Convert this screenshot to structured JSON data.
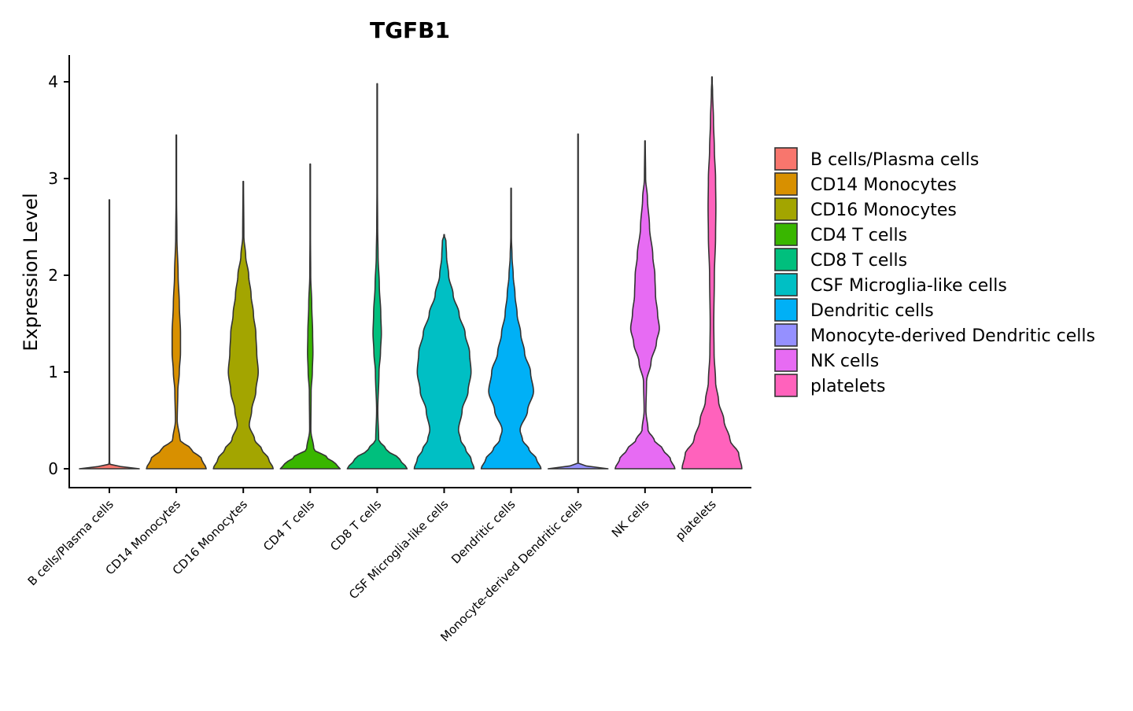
{
  "chart_data": {
    "type": "violin",
    "title": "TGFB1",
    "xlabel": "",
    "ylabel": "Expression Level",
    "ylim": [
      -0.2,
      4.27
    ],
    "yticks": [
      0,
      1,
      2,
      3,
      4
    ],
    "grid": false,
    "legend_position": "right",
    "categories": [
      "B cells/Plasma cells",
      "CD14 Monocytes",
      "CD16 Monocytes",
      "CD4 T cells",
      "CD8 T cells",
      "CSF Microglia-like cells",
      "Dendritic cells",
      "Monocyte-derived Dendritic cells",
      "NK cells",
      "platelets"
    ],
    "series": [
      {
        "name": "B cells/Plasma cells",
        "color": "#F8766D",
        "max": 2.78,
        "profile": [
          [
            0,
            1.0
          ],
          [
            0.01,
            0.5
          ],
          [
            0.05,
            0.008
          ],
          [
            2.78,
            0.008
          ]
        ]
      },
      {
        "name": "CD14 Monocytes",
        "color": "#D89000",
        "max": 3.45,
        "profile": [
          [
            0,
            1.0
          ],
          [
            0.1,
            0.85
          ],
          [
            0.2,
            0.5
          ],
          [
            0.3,
            0.12
          ],
          [
            0.5,
            0.03
          ],
          [
            0.8,
            0.05
          ],
          [
            1.0,
            0.1
          ],
          [
            1.2,
            0.14
          ],
          [
            1.4,
            0.14
          ],
          [
            1.7,
            0.1
          ],
          [
            2.0,
            0.06
          ],
          [
            2.4,
            0.02
          ],
          [
            2.8,
            0.008
          ],
          [
            3.45,
            0.008
          ]
        ]
      },
      {
        "name": "CD16 Monocytes",
        "color": "#A3A500",
        "max": 2.97,
        "profile": [
          [
            0,
            1.0
          ],
          [
            0.1,
            0.85
          ],
          [
            0.2,
            0.62
          ],
          [
            0.3,
            0.38
          ],
          [
            0.45,
            0.2
          ],
          [
            0.6,
            0.28
          ],
          [
            0.8,
            0.42
          ],
          [
            1.0,
            0.5
          ],
          [
            1.2,
            0.45
          ],
          [
            1.4,
            0.42
          ],
          [
            1.6,
            0.34
          ],
          [
            1.8,
            0.26
          ],
          [
            2.0,
            0.18
          ],
          [
            2.2,
            0.08
          ],
          [
            2.4,
            0.02
          ],
          [
            2.97,
            0.008
          ]
        ]
      },
      {
        "name": "CD4 T cells",
        "color": "#39B600",
        "max": 3.15,
        "profile": [
          [
            0,
            1.0
          ],
          [
            0.05,
            0.85
          ],
          [
            0.12,
            0.55
          ],
          [
            0.2,
            0.12
          ],
          [
            0.4,
            0.02
          ],
          [
            0.8,
            0.03
          ],
          [
            1.0,
            0.07
          ],
          [
            1.2,
            0.09
          ],
          [
            1.4,
            0.08
          ],
          [
            1.7,
            0.05
          ],
          [
            2.0,
            0.015
          ],
          [
            2.4,
            0.008
          ],
          [
            3.15,
            0.008
          ]
        ]
      },
      {
        "name": "CD8 T cells",
        "color": "#00BF7D",
        "max": 3.98,
        "profile": [
          [
            0,
            1.0
          ],
          [
            0.1,
            0.75
          ],
          [
            0.2,
            0.3
          ],
          [
            0.3,
            0.05
          ],
          [
            0.6,
            0.02
          ],
          [
            1.0,
            0.06
          ],
          [
            1.2,
            0.11
          ],
          [
            1.4,
            0.14
          ],
          [
            1.6,
            0.12
          ],
          [
            1.9,
            0.07
          ],
          [
            2.2,
            0.03
          ],
          [
            2.5,
            0.015
          ],
          [
            2.9,
            0.008
          ],
          [
            3.98,
            0.008
          ]
        ]
      },
      {
        "name": "CSF Microglia-like cells",
        "color": "#00BFC4",
        "max": 2.42,
        "profile": [
          [
            0,
            1.0
          ],
          [
            0.1,
            0.9
          ],
          [
            0.2,
            0.72
          ],
          [
            0.3,
            0.55
          ],
          [
            0.4,
            0.48
          ],
          [
            0.6,
            0.6
          ],
          [
            0.8,
            0.8
          ],
          [
            1.0,
            0.9
          ],
          [
            1.2,
            0.85
          ],
          [
            1.4,
            0.7
          ],
          [
            1.6,
            0.5
          ],
          [
            1.8,
            0.3
          ],
          [
            2.0,
            0.15
          ],
          [
            2.2,
            0.08
          ],
          [
            2.35,
            0.06
          ],
          [
            2.42,
            0.0
          ]
        ]
      },
      {
        "name": "Dendritic cells",
        "color": "#00B0F6",
        "max": 2.9,
        "profile": [
          [
            0,
            1.0
          ],
          [
            0.1,
            0.85
          ],
          [
            0.2,
            0.6
          ],
          [
            0.3,
            0.38
          ],
          [
            0.4,
            0.3
          ],
          [
            0.6,
            0.55
          ],
          [
            0.8,
            0.75
          ],
          [
            1.0,
            0.65
          ],
          [
            1.2,
            0.45
          ],
          [
            1.4,
            0.32
          ],
          [
            1.6,
            0.2
          ],
          [
            1.8,
            0.13
          ],
          [
            2.0,
            0.07
          ],
          [
            2.2,
            0.03
          ],
          [
            2.4,
            0.01
          ],
          [
            2.9,
            0.008
          ]
        ]
      },
      {
        "name": "Monocyte-derived Dendritic cells",
        "color": "#9590FF",
        "max": 3.46,
        "profile": [
          [
            0,
            1.0
          ],
          [
            0.01,
            0.5
          ],
          [
            0.05,
            0.008
          ],
          [
            3.46,
            0.008
          ]
        ]
      },
      {
        "name": "NK cells",
        "color": "#E76BF3",
        "max": 3.39,
        "profile": [
          [
            0,
            1.0
          ],
          [
            0.1,
            0.85
          ],
          [
            0.2,
            0.6
          ],
          [
            0.3,
            0.3
          ],
          [
            0.4,
            0.1
          ],
          [
            0.6,
            0.03
          ],
          [
            0.9,
            0.05
          ],
          [
            1.1,
            0.2
          ],
          [
            1.3,
            0.38
          ],
          [
            1.45,
            0.48
          ],
          [
            1.6,
            0.42
          ],
          [
            1.8,
            0.35
          ],
          [
            2.0,
            0.33
          ],
          [
            2.2,
            0.26
          ],
          [
            2.5,
            0.15
          ],
          [
            2.8,
            0.08
          ],
          [
            3.0,
            0.02
          ],
          [
            3.39,
            0.008
          ]
        ]
      },
      {
        "name": "platelets",
        "color": "#FF62BC",
        "max": 4.05,
        "profile": [
          [
            0,
            1.0
          ],
          [
            0.15,
            0.9
          ],
          [
            0.3,
            0.6
          ],
          [
            0.5,
            0.4
          ],
          [
            0.7,
            0.22
          ],
          [
            0.9,
            0.12
          ],
          [
            1.2,
            0.07
          ],
          [
            1.5,
            0.06
          ],
          [
            2.0,
            0.08
          ],
          [
            2.4,
            0.12
          ],
          [
            2.7,
            0.13
          ],
          [
            3.0,
            0.12
          ],
          [
            3.3,
            0.08
          ],
          [
            3.6,
            0.05
          ],
          [
            3.9,
            0.02
          ],
          [
            4.05,
            0.0
          ]
        ]
      }
    ]
  }
}
